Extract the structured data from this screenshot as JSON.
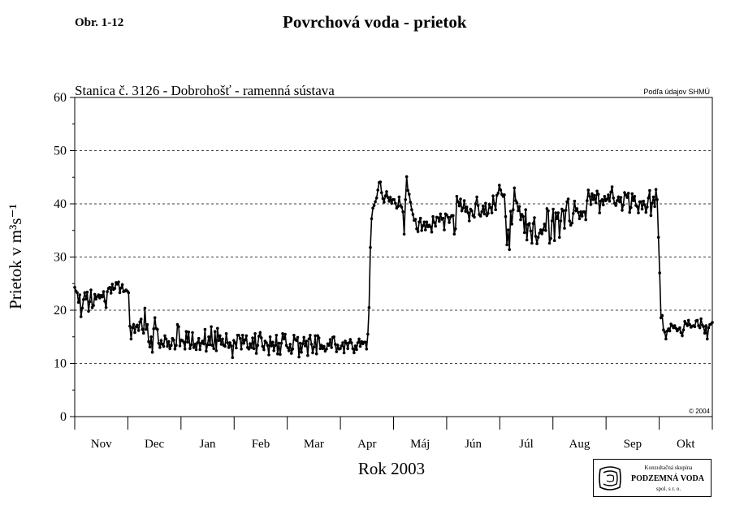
{
  "figure_label": "Obr. 1-12",
  "page_title": "Povrchová voda - prietok",
  "logo": {
    "line1": "Konzultačná skupina",
    "line2": "PODZEMNÁ VODA",
    "line3": "spol. s r. o."
  },
  "chart_data": {
    "type": "line",
    "title": "Stanica č. 3126 - Dobrohošť - ramenná sústava",
    "source_note": "Podľa údajov SHMÚ",
    "copyright": "© 2004",
    "ylabel": "Prietok v m³s⁻¹",
    "xlabel": "Rok 2003",
    "ylim": [
      0,
      60
    ],
    "yticks": [
      0,
      10,
      20,
      30,
      40,
      50,
      60
    ],
    "ytick_labels": [
      "0",
      "10",
      "20",
      "30",
      "40",
      "50",
      "60"
    ],
    "grid": "horizontal dashed at 10, 20, 30, 40, 50",
    "months": [
      "Nov",
      "Dec",
      "Jan",
      "Feb",
      "Mar",
      "Apr",
      "Máj",
      "Jún",
      "Júl",
      "Aug",
      "Sep",
      "Okt"
    ],
    "series": [
      {
        "values": [
          24.3,
          23.6,
          23.3,
          21.5,
          22.9,
          18.8,
          20.4,
          22.0,
          23.3,
          22.1,
          23.4,
          19.8,
          21.6,
          23.8,
          20.5,
          20.9,
          23.0,
          22.1,
          22.6,
          22.9,
          22.3,
          22.8,
          22.5,
          23.5,
          21.7,
          20.5,
          23.5,
          24.1,
          24.3,
          23.2,
          24.9,
          23.9,
          24.1,
          25.2,
          24.9,
          25.3,
          23.3,
          24.2,
          24.8,
          23.5,
          23.6,
          23.8,
          23.6,
          23.3,
          17.0,
          14.6,
          16.7,
          17.3,
          15.8,
          16.9,
          17.2,
          16.2,
          17.8,
          18.3,
          16.4,
          15.7,
          20.4,
          16.4,
          17.3,
          14.1,
          13.1,
          15.0,
          12.1,
          16.5,
          18.6,
          16.6,
          16.4,
          13.8,
          13.0,
          14.3,
          13.6,
          13.2,
          15.2,
          14.6,
          13.2,
          14.1,
          12.8,
          13.4,
          14.7,
          14.4,
          12.7,
          13.4,
          17.3,
          16.9,
          13.3,
          14.4,
          14.3,
          14.0,
          12.7,
          16.0,
          14.0,
          15.9,
          12.8,
          13.5,
          15.8,
          13.0,
          13.6,
          12.6,
          13.9,
          14.7,
          12.6,
          13.8,
          14.2,
          13.7,
          16.4,
          12.3,
          13.5,
          15.0,
          13.5,
          16.9,
          13.4,
          12.8,
          16.0,
          12.4,
          16.6,
          14.3,
          15.2,
          13.6,
          14.6,
          13.4,
          13.2,
          15.6,
          13.9,
          13.0,
          13.9,
          13.3,
          11.1,
          14.3,
          13.9,
          12.9,
          15.3,
          15.3,
          14.7,
          12.7,
          15.3,
          13.8,
          14.4,
          15.2,
          13.0,
          12.7,
          13.7,
          13.0,
          14.8,
          12.8,
          15.6,
          11.9,
          13.4,
          15.1,
          15.8,
          14.8,
          13.2,
          12.6,
          14.2,
          13.9,
          13.4,
          11.6,
          15.0,
          13.3,
          14.0,
          12.4,
          13.4,
          15.3,
          11.8,
          13.8,
          11.7,
          13.8,
          15.6,
          14.6,
          15.5,
          13.4,
          13.0,
          12.4,
          13.6,
          11.9,
          12.7,
          15.3,
          14.5,
          14.3,
          14.9,
          11.2,
          13.8,
          12.1,
          13.7,
          14.9,
          13.3,
          14.2,
          11.5,
          14.6,
          15.3,
          13.6,
          12.0,
          13.1,
          15.2,
          11.8,
          15.2,
          14.8,
          12.8,
          13.4,
          12.8,
          13.2,
          12.3,
          12.7,
          13.7,
          13.4,
          14.5,
          13.0,
          14.9,
          15.0,
          13.6,
          12.2,
          13.4,
          12.7,
          12.8,
          13.3,
          13.9,
          12.0,
          14.2,
          13.8,
          12.8,
          13.9,
          14.5,
          13.9,
          12.8,
          12.0,
          13.3,
          12.6,
          13.9,
          14.6,
          13.2,
          14.1,
          13.7,
          14.0,
          14.0,
          12.7,
          15.5,
          20.5,
          31.8,
          37.2,
          39.2,
          39.7,
          40.4,
          41.1,
          42.6,
          44.0,
          44.1,
          42.1,
          41.0,
          40.3,
          41.5,
          42.3,
          41.2,
          40.5,
          41.2,
          40.1,
          40.8,
          40.8,
          40.1,
          39.2,
          39.5,
          41.3,
          39.7,
          39.4,
          38.5,
          34.3,
          40.8,
          45.1,
          42.5,
          41.8,
          40.3,
          38.9,
          38.0,
          36.9,
          37.1,
          35.3,
          34.8,
          36.6,
          37.3,
          35.0,
          35.9,
          36.6,
          35.1,
          36.6,
          35.7,
          36.0,
          35.7,
          34.7,
          37.6,
          36.5,
          35.8,
          37.5,
          37.4,
          36.7,
          38.1,
          37.1,
          37.3,
          35.1,
          38.1,
          37.9,
          37.5,
          36.5,
          37.5,
          37.8,
          37.8,
          34.3,
          35.3,
          41.4,
          40.4,
          39.6,
          40.9,
          38.7,
          39.2,
          40.6,
          38.6,
          39.4,
          38.3,
          36.8,
          39.0,
          38.7,
          37.8,
          37.5,
          40.0,
          41.3,
          39.7,
          38.0,
          37.7,
          38.5,
          39.6,
          38.1,
          40.1,
          37.8,
          38.2,
          39.9,
          39.3,
          38.3,
          41.5,
          40.0,
          38.9,
          41.6,
          42.0,
          43.5,
          42.6,
          41.8,
          41.4,
          41.7,
          37.6,
          32.3,
          35.1,
          31.4,
          38.6,
          36.2,
          38.9,
          43.0,
          40.6,
          40.2,
          38.7,
          39.5,
          37.0,
          38.0,
          37.6,
          34.6,
          38.9,
          33.2,
          36.1,
          36.3,
          34.9,
          32.6,
          36.3,
          37.4,
          33.9,
          32.5,
          33.7,
          34.5,
          35.1,
          34.4,
          35.1,
          36.2,
          35.0,
          39.1,
          38.7,
          32.6,
          33.5,
          36.8,
          39.0,
          33.1,
          38.3,
          37.2,
          38.3,
          33.7,
          36.8,
          39.0,
          38.7,
          35.4,
          38.8,
          40.4,
          40.9,
          36.8,
          36.0,
          36.4,
          38.2,
          40.5,
          38.7,
          39.1,
          38.4,
          37.2,
          38.5,
          37.7,
          38.5,
          38.5,
          37.0,
          40.6,
          42.6,
          41.4,
          39.9,
          41.9,
          40.8,
          41.6,
          40.2,
          42.4,
          41.8,
          38.3,
          40.5,
          40.8,
          39.8,
          41.4,
          40.6,
          40.9,
          41.7,
          40.5,
          42.2,
          43.2,
          41.1,
          40.1,
          39.7,
          40.6,
          41.3,
          40.4,
          41.2,
          38.8,
          39.8,
          42.1,
          41.7,
          41.2,
          42.0,
          38.4,
          39.3,
          41.9,
          40.6,
          41.4,
          39.7,
          39.5,
          38.3,
          40.4,
          40.4,
          39.0,
          40.5,
          39.8,
          38.4,
          39.4,
          41.1,
          42.5,
          37.8,
          40.1,
          41.3,
          39.5,
          42.7,
          40.8,
          33.7,
          27.0,
          18.6,
          19.0,
          16.3,
          15.9,
          14.6,
          16.1,
          16.5,
          16.1,
          17.4,
          17.1,
          16.7,
          17.1,
          16.6,
          16.1,
          16.4,
          16.7,
          15.8,
          15.2,
          16.3,
          17.9,
          17.5,
          17.1,
          18.1,
          17.3,
          16.8,
          17.0,
          17.1,
          16.9,
          18.0,
          18.1,
          17.1,
          16.7,
          18.4,
          17.2,
          16.9,
          15.7,
          17.1,
          14.6,
          16.7,
          17.3,
          17.4,
          17.7
        ]
      }
    ]
  }
}
